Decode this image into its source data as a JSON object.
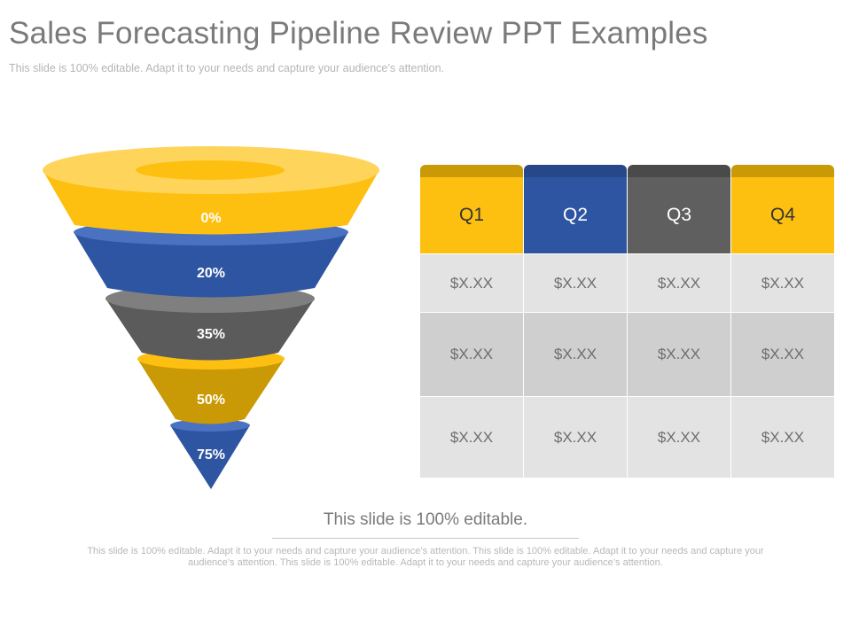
{
  "slide": {
    "title": "Sales Forecasting Pipeline Review PPT Examples",
    "subtitle": "This slide is 100% editable. Adapt it to your needs and capture your audience’s attention."
  },
  "funnel": {
    "stages": [
      {
        "label": "0%",
        "color": "#FDC010",
        "rim": "#FFD45A"
      },
      {
        "label": "20%",
        "color": "#2E55A2",
        "rim": "#4A72C0"
      },
      {
        "label": "35%",
        "color": "#5B5B5B",
        "rim": "#7F7F7F"
      },
      {
        "label": "50%",
        "color": "#C99A06",
        "rim": "#FDC010"
      },
      {
        "label": "75%",
        "color": "#2E55A2",
        "rim": "#4A72C0"
      }
    ]
  },
  "table": {
    "headers": [
      {
        "label": "Q1",
        "color": "#FDC010",
        "tab": "#C99A06"
      },
      {
        "label": "Q2",
        "color": "#2E55A2",
        "tab": "#26478A"
      },
      {
        "label": "Q3",
        "color": "#5F5F5F",
        "tab": "#4A4A4A"
      },
      {
        "label": "Q4",
        "color": "#FDC010",
        "tab": "#C99A06"
      }
    ],
    "rows": [
      [
        "$X.XX",
        "$X.XX",
        "$X.XX",
        "$X.XX"
      ],
      [
        "$X.XX",
        "$X.XX",
        "$X.XX",
        "$X.XX"
      ],
      [
        "$X.XX",
        "$X.XX",
        "$X.XX",
        "$X.XX"
      ]
    ]
  },
  "footer": {
    "heading": "This slide is 100% editable.",
    "body": "This slide is 100% editable. Adapt it to your needs and capture your audience’s attention. This slide is 100% editable. Adapt it to your needs and capture your audience’s attention. This slide is 100% editable. Adapt it to your needs and capture your audience’s attention."
  }
}
